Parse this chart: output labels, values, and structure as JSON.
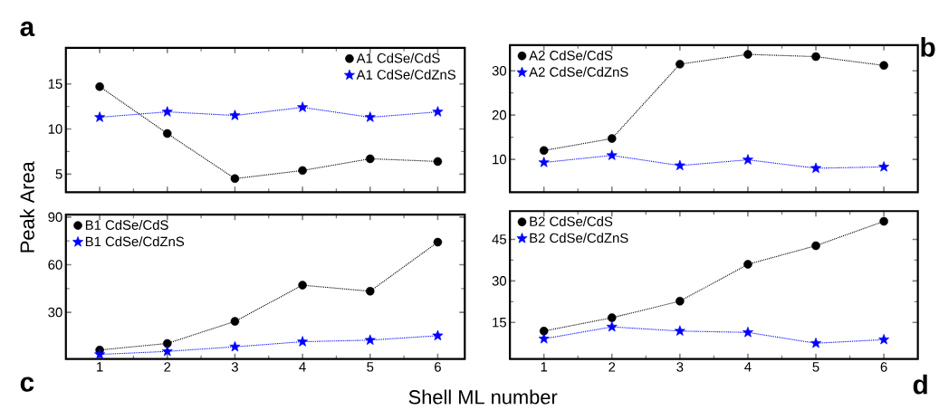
{
  "chart_data": [
    {
      "type": "line",
      "title": "a",
      "ylabel": "Peak Area",
      "x": [
        1,
        2,
        3,
        4,
        5,
        6
      ],
      "xlim": [
        0.5,
        6.4
      ],
      "ylim": [
        3,
        19
      ],
      "xticks": [
        1,
        2,
        3,
        4,
        5,
        6
      ],
      "yticks": [
        5,
        10,
        15
      ],
      "tick_labels": "y",
      "legend": "top right",
      "line_style": "dotted",
      "series": [
        {
          "name": "A1 CdSe/CdS",
          "color": "#000000",
          "marker": "circle",
          "values": [
            14.7,
            9.5,
            4.5,
            5.4,
            6.7,
            6.4
          ]
        },
        {
          "name": "A1 CdSe/CdZnS",
          "color": "#0000ff",
          "marker": "star",
          "values": [
            11.3,
            11.9,
            11.5,
            12.4,
            11.3,
            11.9
          ]
        }
      ]
    },
    {
      "type": "line",
      "title": "b",
      "x": [
        1,
        2,
        3,
        4,
        5,
        6
      ],
      "xlim": [
        0.5,
        6.5
      ],
      "ylim": [
        2.6,
        35.8
      ],
      "xticks": [
        1,
        2,
        3,
        4,
        5,
        6
      ],
      "yticks": [
        10,
        20,
        30
      ],
      "tick_labels": "y",
      "legend": "top left",
      "line_style": "dotted",
      "series": [
        {
          "name": "A2 CdSe/CdS",
          "color": "#000000",
          "marker": "circle",
          "values": [
            12.0,
            14.7,
            31.5,
            33.7,
            33.2,
            31.2
          ]
        },
        {
          "name": "A2 CdSe/CdZnS",
          "color": "#0000ff",
          "marker": "star",
          "values": [
            9.3,
            10.9,
            8.6,
            9.9,
            8.0,
            8.3
          ]
        }
      ]
    },
    {
      "type": "line",
      "title": "c",
      "xlabel": "Shell ML number",
      "x": [
        1,
        2,
        3,
        4,
        5,
        6
      ],
      "xlim": [
        0.5,
        6.4
      ],
      "ylim": [
        0.6,
        91.5
      ],
      "xticks": [
        1,
        2,
        3,
        4,
        5,
        6
      ],
      "yticks": [
        30,
        60,
        90
      ],
      "legend": "top left",
      "line_style": "dotted",
      "series": [
        {
          "name": "B1 CdSe/CdS",
          "color": "#000000",
          "marker": "circle",
          "values": [
            6.3,
            10.4,
            24.3,
            47.1,
            43.3,
            74.2
          ]
        },
        {
          "name": "B1 CdSe/CdZnS",
          "color": "#0000ff",
          "marker": "star",
          "values": [
            3.5,
            5.4,
            8.3,
            11.5,
            12.5,
            15.3
          ]
        }
      ]
    },
    {
      "type": "line",
      "title": "d",
      "x": [
        1,
        2,
        3,
        4,
        5,
        6
      ],
      "xlim": [
        0.5,
        6.5
      ],
      "ylim": [
        1.8,
        55.2
      ],
      "xticks": [
        1,
        2,
        3,
        4,
        5,
        6
      ],
      "yticks": [
        15,
        30,
        45
      ],
      "legend": "top left",
      "line_style": "dotted",
      "series": [
        {
          "name": "B2 CdSe/CdS",
          "color": "#000000",
          "marker": "circle",
          "values": [
            11.9,
            16.7,
            22.7,
            36.0,
            42.7,
            51.5
          ]
        },
        {
          "name": "B2 CdSe/CdZnS",
          "color": "#0000ff",
          "marker": "star",
          "values": [
            9.1,
            13.4,
            11.9,
            11.4,
            7.5,
            8.8
          ]
        }
      ]
    }
  ]
}
